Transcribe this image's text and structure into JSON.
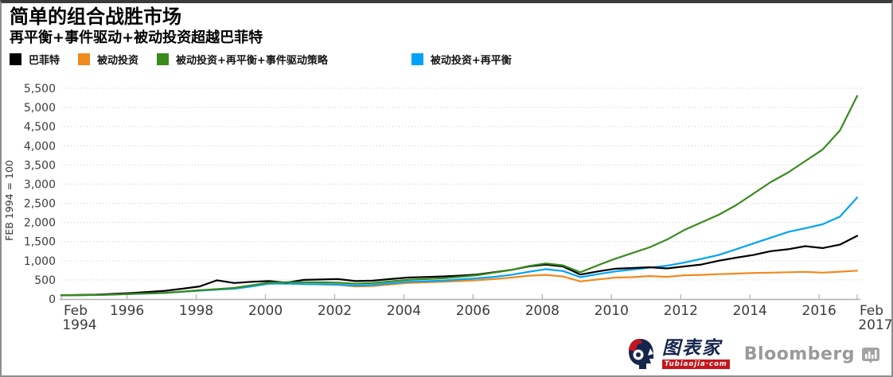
{
  "header": {
    "title": "简单的组合战胜市场",
    "subtitle": "再平衡+事件驱动+被动投资超越巴菲特"
  },
  "footer": {
    "tubiaojia_name": "图表家",
    "tubiaojia_domain": "Tubiaojia·com",
    "bloomberg": "Bloomberg"
  },
  "colors": {
    "grid": "#cccccc",
    "axis": "#b0b0b0",
    "tick_text": "#3c3c3c"
  },
  "chart_data": {
    "type": "line",
    "title": "简单的组合战胜市场",
    "subtitle": "再平衡+事件驱动+被动投资超越巴菲特",
    "ylabel": "FEB 1994 = 100",
    "xlabel": "",
    "grid": "horizontal-dotted",
    "legend_position": "top-left",
    "ylim": [
      0,
      5500
    ],
    "y_tick_step": 500,
    "xlim": [
      1994.1,
      2017.1
    ],
    "x_mid_ticks": [
      1996,
      1998,
      2000,
      2002,
      2004,
      2006,
      2008,
      2010,
      2012,
      2014,
      2016
    ],
    "x_start_tick": {
      "x": 1994.1,
      "lines": [
        "Feb",
        "1994"
      ]
    },
    "x_end_tick": {
      "x": 2017.1,
      "lines": [
        "Feb",
        "2017"
      ]
    },
    "x": [
      1994.1,
      1994.6,
      1995.1,
      1995.6,
      1996.1,
      1996.6,
      1997.1,
      1997.6,
      1998.1,
      1998.6,
      1999.1,
      1999.6,
      2000.1,
      2000.6,
      2001.1,
      2001.6,
      2002.1,
      2002.6,
      2003.1,
      2003.6,
      2004.1,
      2004.6,
      2005.1,
      2005.6,
      2006.1,
      2006.6,
      2007.1,
      2007.6,
      2008.1,
      2008.6,
      2009.1,
      2009.6,
      2010.1,
      2010.6,
      2011.1,
      2011.6,
      2012.1,
      2012.6,
      2013.1,
      2013.6,
      2014.1,
      2014.6,
      2015.1,
      2015.6,
      2016.1,
      2016.6,
      2017.1
    ],
    "series": [
      {
        "name": "巴菲特",
        "color": "#000000",
        "values": [
          100,
          105,
          115,
          135,
          155,
          185,
          215,
          270,
          330,
          490,
          420,
          450,
          470,
          430,
          500,
          510,
          520,
          470,
          480,
          520,
          560,
          575,
          590,
          610,
          640,
          700,
          760,
          850,
          900,
          850,
          640,
          720,
          790,
          810,
          830,
          800,
          850,
          900,
          1000,
          1080,
          1150,
          1250,
          1300,
          1380,
          1330,
          1420,
          1650
        ]
      },
      {
        "name": "被动投资",
        "color": "#ef8a1e",
        "values": [
          100,
          102,
          105,
          115,
          130,
          145,
          160,
          190,
          220,
          250,
          280,
          340,
          400,
          410,
          390,
          380,
          370,
          330,
          340,
          380,
          420,
          435,
          450,
          470,
          490,
          520,
          560,
          610,
          630,
          590,
          460,
          510,
          560,
          570,
          600,
          580,
          620,
          630,
          650,
          665,
          680,
          690,
          700,
          710,
          690,
          715,
          740
        ]
      },
      {
        "name": "被动投资+再平衡+事件驱动策略",
        "color": "#3a8a1e",
        "values": [
          100,
          103,
          108,
          120,
          135,
          150,
          165,
          195,
          230,
          260,
          290,
          360,
          430,
          440,
          440,
          435,
          430,
          400,
          420,
          460,
          500,
          520,
          540,
          580,
          620,
          690,
          760,
          860,
          930,
          880,
          700,
          880,
          1050,
          1200,
          1350,
          1550,
          1800,
          2000,
          2200,
          2450,
          2750,
          3050,
          3300,
          3600,
          3900,
          4400,
          5300
        ]
      },
      {
        "name": "被动投资+再平衡",
        "color": "#00a3f5",
        "values": [
          100,
          102,
          106,
          118,
          130,
          145,
          160,
          190,
          220,
          245,
          270,
          330,
          400,
          405,
          390,
          385,
          380,
          350,
          370,
          410,
          450,
          465,
          480,
          510,
          540,
          580,
          630,
          710,
          780,
          730,
          570,
          650,
          720,
          770,
          820,
          870,
          950,
          1050,
          1150,
          1300,
          1450,
          1600,
          1750,
          1850,
          1950,
          2150,
          2650
        ]
      }
    ]
  }
}
